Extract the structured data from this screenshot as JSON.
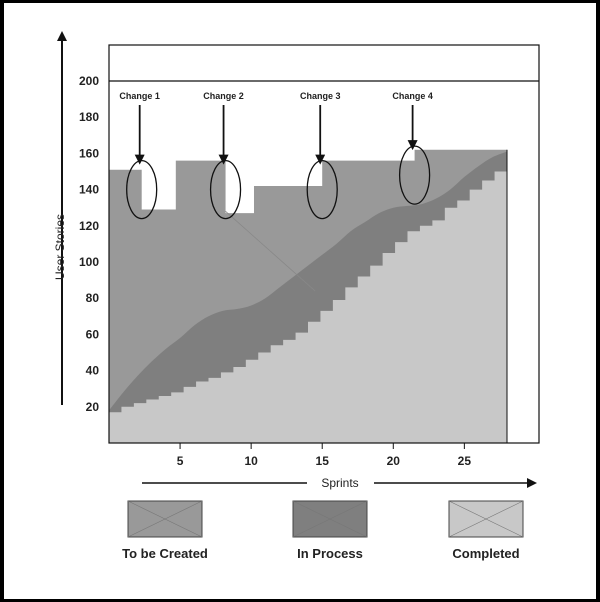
{
  "chart_data": {
    "type": "area",
    "xlabel": "Sprints",
    "ylabel": "User Stories",
    "xlim": [
      0,
      28
    ],
    "ylim": [
      0,
      200
    ],
    "xticks": [
      5,
      10,
      15,
      20,
      25
    ],
    "yticks": [
      20,
      40,
      60,
      80,
      100,
      120,
      140,
      160,
      180,
      200
    ],
    "series": [
      {
        "name": "To be Created",
        "color": "#999999",
        "points": [
          [
            0,
            151
          ],
          [
            2.3,
            151
          ],
          [
            2.3,
            129
          ],
          [
            4.7,
            129
          ],
          [
            4.7,
            156
          ],
          [
            8.2,
            156
          ],
          [
            8.2,
            127
          ],
          [
            10.2,
            127
          ],
          [
            10.2,
            142
          ],
          [
            15.0,
            142
          ],
          [
            15.0,
            156
          ],
          [
            21.5,
            156
          ],
          [
            21.5,
            162
          ],
          [
            28,
            162
          ]
        ]
      },
      {
        "name": "In Process",
        "color": "#7f7f7f",
        "points": [
          [
            0,
            18
          ],
          [
            1,
            28
          ],
          [
            2,
            37
          ],
          [
            3,
            45
          ],
          [
            4,
            52
          ],
          [
            5,
            58
          ],
          [
            6,
            65
          ],
          [
            7,
            70
          ],
          [
            8,
            73
          ],
          [
            9,
            74
          ],
          [
            10,
            76
          ],
          [
            11,
            80
          ],
          [
            12,
            86
          ],
          [
            13,
            92
          ],
          [
            14,
            98
          ],
          [
            15,
            104
          ],
          [
            16,
            110
          ],
          [
            17,
            117
          ],
          [
            18,
            122
          ],
          [
            19,
            127
          ],
          [
            20,
            130
          ],
          [
            21,
            131
          ],
          [
            22,
            132
          ],
          [
            23,
            135
          ],
          [
            24,
            140
          ],
          [
            25,
            147
          ],
          [
            26,
            153
          ],
          [
            27,
            158
          ],
          [
            28,
            161
          ]
        ]
      },
      {
        "name": "Completed",
        "color": "#c8c8c8",
        "steps": [
          17,
          20,
          22,
          24,
          26,
          28,
          31,
          34,
          36,
          39,
          42,
          46,
          50,
          54,
          57,
          61,
          67,
          73,
          79,
          86,
          92,
          98,
          105,
          111,
          117,
          120,
          123,
          130,
          134,
          140,
          145,
          150,
          150
        ]
      }
    ],
    "annotations": [
      {
        "label": "Change 1",
        "x": 2.3,
        "y": 140
      },
      {
        "label": "Change 2",
        "x": 8.2,
        "y": 140
      },
      {
        "label": "Change 3",
        "x": 15.0,
        "y": 140
      },
      {
        "label": "Change 4",
        "x": 21.5,
        "y": 148
      }
    ],
    "legend": [
      {
        "label": "To be Created",
        "color": "#999999"
      },
      {
        "label": "In Process",
        "color": "#7f7f7f"
      },
      {
        "label": "Completed",
        "color": "#c8c8c8"
      }
    ],
    "legend_position": "bottom"
  }
}
